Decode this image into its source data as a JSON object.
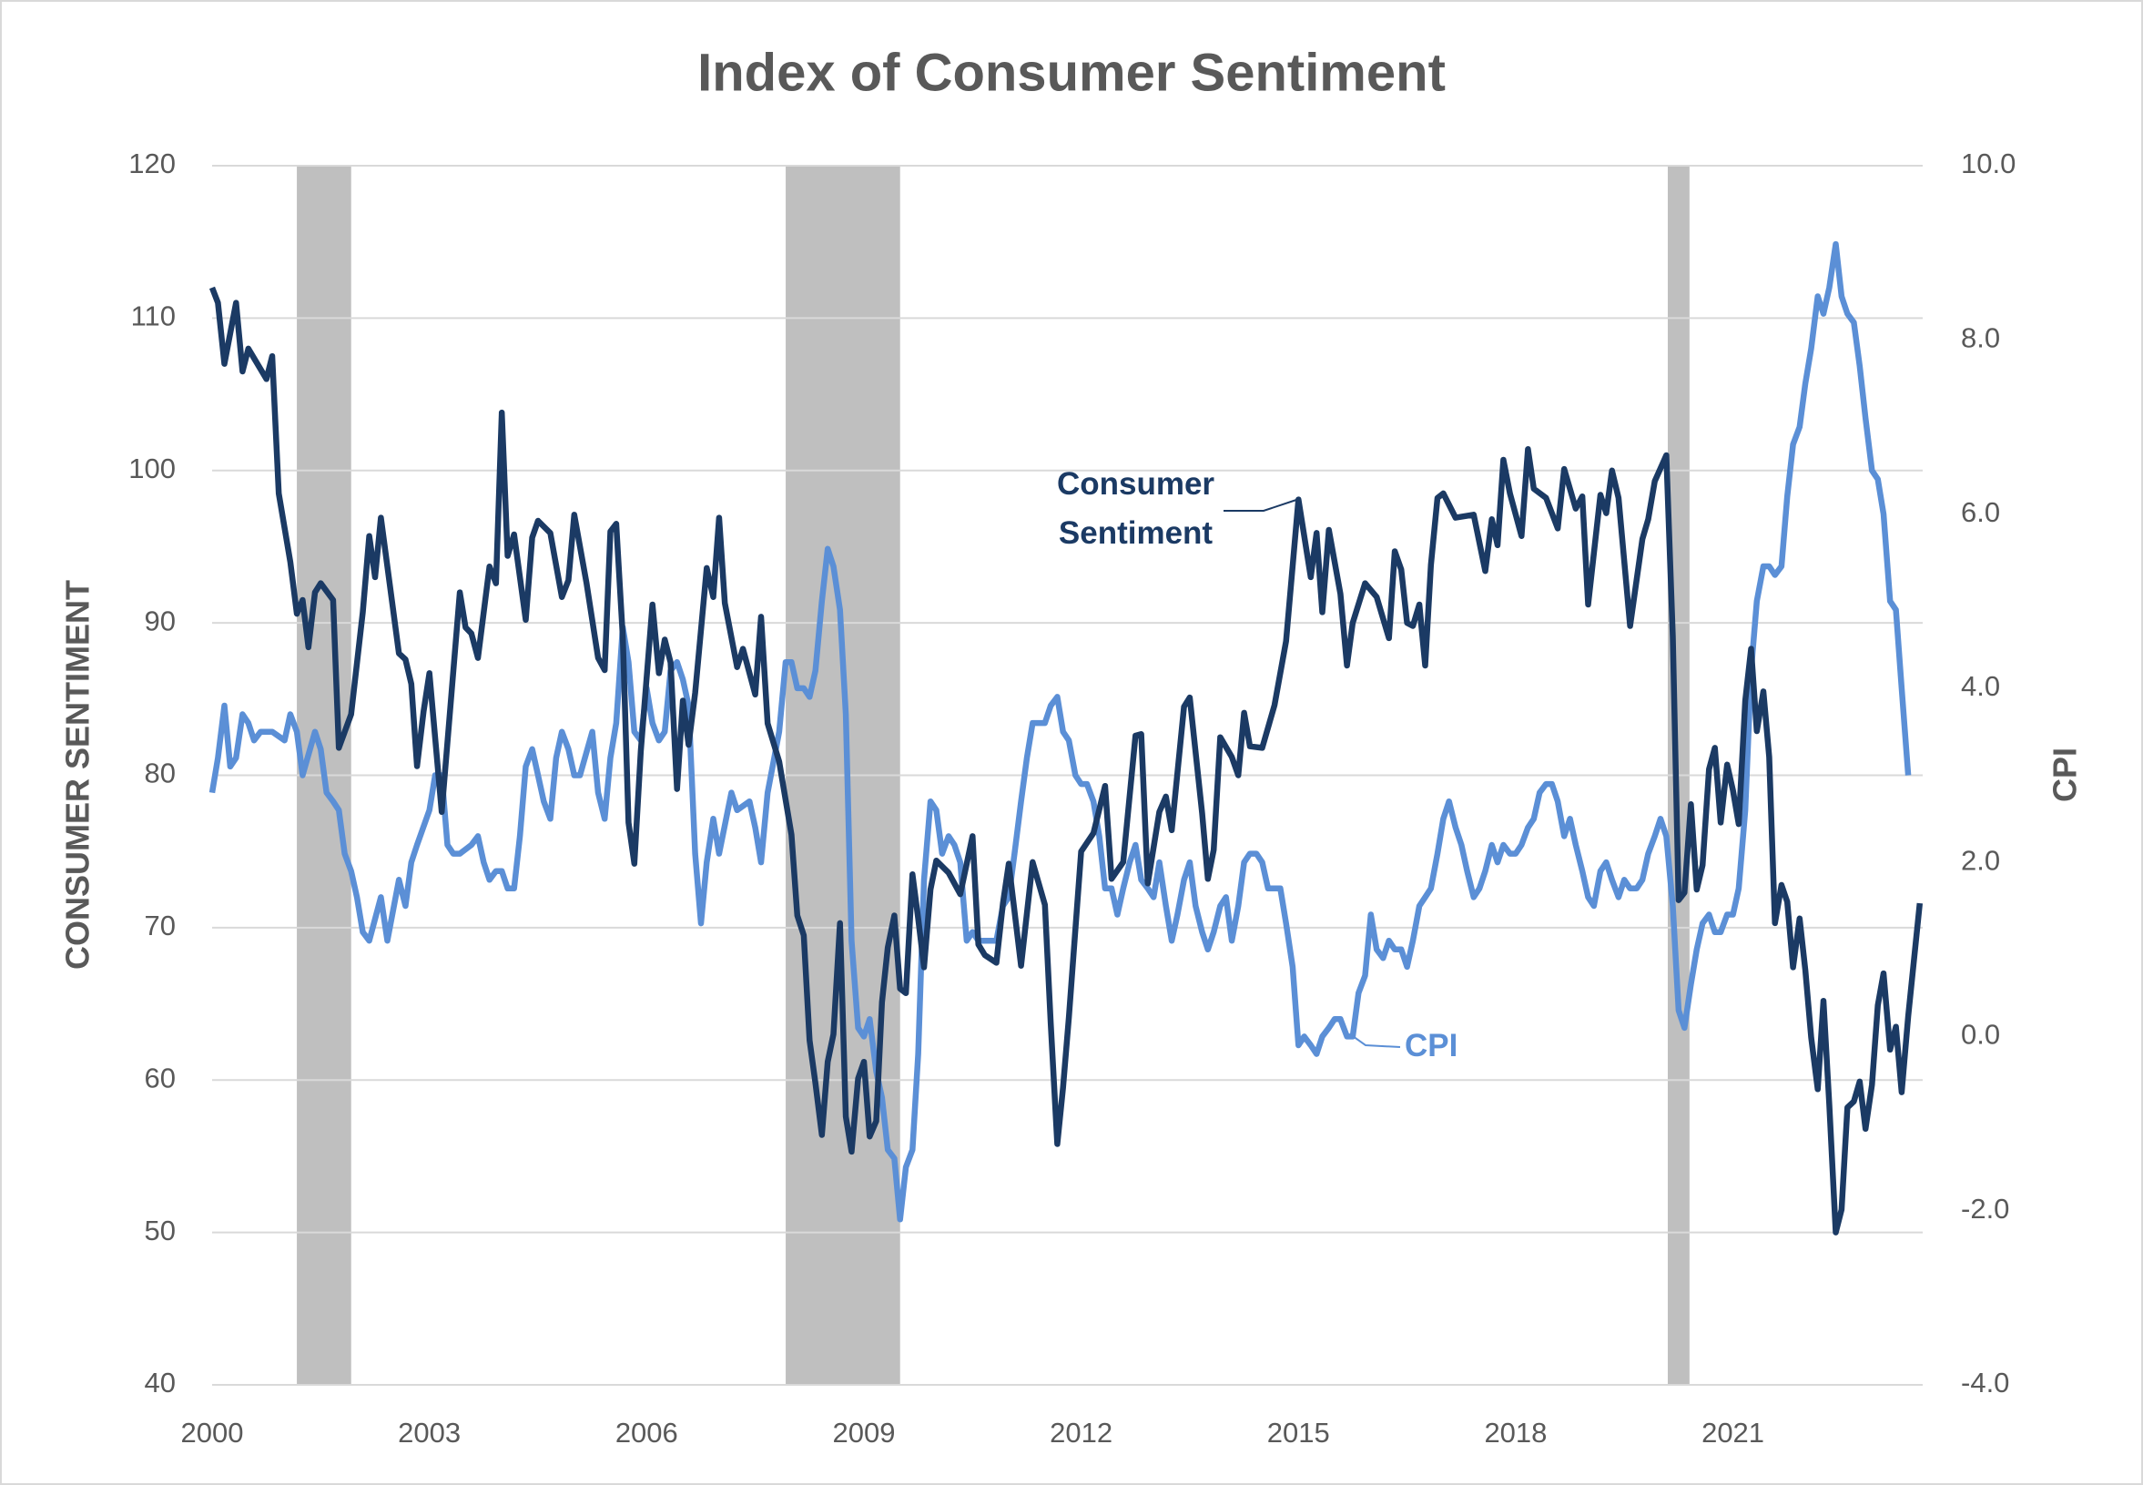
{
  "chart_data": {
    "type": "line",
    "title": "Index of Consumer Sentiment",
    "y_label": "CONSUMER SENTIMENT",
    "y2_label": "CPI",
    "xlim": [
      2000,
      2023.62
    ],
    "xticks": [
      2000,
      2003,
      2006,
      2009,
      2012,
      2015,
      2018,
      2021
    ],
    "ylim": [
      40,
      120
    ],
    "yticks": [
      40,
      50,
      60,
      70,
      80,
      90,
      100,
      110,
      120
    ],
    "y2lim": [
      -4,
      10
    ],
    "y2ticks": [
      {
        "value": -4,
        "label": "-4.0"
      },
      {
        "value": -2,
        "label": "-2.0"
      },
      {
        "value": 0,
        "label": "0.0"
      },
      {
        "value": 2,
        "label": "2.0"
      },
      {
        "value": 4,
        "label": "4.0"
      },
      {
        "value": 6,
        "label": "6.0"
      },
      {
        "value": 8,
        "label": "8.0"
      },
      {
        "value": 10,
        "label": "10.0"
      }
    ],
    "grid": true,
    "recession_color": "#bfbfbf",
    "recessions": [
      [
        2001.17,
        2001.92
      ],
      [
        2007.92,
        2009.5
      ],
      [
        2020.1,
        2020.4
      ]
    ],
    "series": [
      {
        "name": "Consumer Sentiment",
        "color": "#1b3a64",
        "x": [
          2000,
          2000.08,
          2000.17,
          2000.33,
          2000.42,
          2000.5,
          2000.75,
          2000.83,
          2000.92,
          2001.08,
          2001.17,
          2001.25,
          2001.33,
          2001.42,
          2001.5,
          2001.67,
          2001.75,
          2001.92,
          2002.08,
          2002.17,
          2002.25,
          2002.33,
          2002.58,
          2002.67,
          2002.75,
          2002.83,
          2002.92,
          2003,
          2003.17,
          2003.42,
          2003.5,
          2003.58,
          2003.67,
          2003.83,
          2003.92,
          2004,
          2004.08,
          2004.17,
          2004.33,
          2004.42,
          2004.5,
          2004.67,
          2004.83,
          2004.92,
          2005,
          2005.17,
          2005.33,
          2005.42,
          2005.5,
          2005.58,
          2005.67,
          2005.75,
          2005.83,
          2005.92,
          2006.08,
          2006.17,
          2006.25,
          2006.33,
          2006.42,
          2006.5,
          2006.58,
          2006.67,
          2006.83,
          2006.92,
          2007,
          2007.08,
          2007.25,
          2007.33,
          2007.5,
          2007.58,
          2007.67,
          2007.83,
          2008,
          2008.08,
          2008.17,
          2008.25,
          2008.33,
          2008.42,
          2008.5,
          2008.58,
          2008.67,
          2008.75,
          2008.83,
          2008.92,
          2009,
          2009.08,
          2009.17,
          2009.25,
          2009.33,
          2009.42,
          2009.5,
          2009.58,
          2009.67,
          2009.75,
          2009.83,
          2009.92,
          2010,
          2010.17,
          2010.33,
          2010.5,
          2010.58,
          2010.67,
          2010.83,
          2010.92,
          2011,
          2011.17,
          2011.33,
          2011.5,
          2011.58,
          2011.67,
          2011.75,
          2011.83,
          2012,
          2012.17,
          2012.33,
          2012.42,
          2012.58,
          2012.75,
          2012.83,
          2012.92,
          2013.08,
          2013.17,
          2013.25,
          2013.42,
          2013.5,
          2013.67,
          2013.75,
          2013.83,
          2013.92,
          2014.08,
          2014.17,
          2014.25,
          2014.33,
          2014.5,
          2014.67,
          2014.83,
          2015,
          2015.17,
          2015.25,
          2015.33,
          2015.42,
          2015.58,
          2015.67,
          2015.75,
          2015.92,
          2016.08,
          2016.25,
          2016.33,
          2016.42,
          2016.5,
          2016.58,
          2016.67,
          2016.75,
          2016.83,
          2016.92,
          2017,
          2017.17,
          2017.42,
          2017.58,
          2017.67,
          2017.75,
          2017.83,
          2017.92,
          2018.08,
          2018.17,
          2018.25,
          2018.42,
          2018.58,
          2018.67,
          2018.83,
          2018.92,
          2019,
          2019.17,
          2019.25,
          2019.33,
          2019.42,
          2019.58,
          2019.75,
          2019.83,
          2019.92,
          2020.08,
          2020.17,
          2020.25,
          2020.33,
          2020.42,
          2020.5,
          2020.58,
          2020.67,
          2020.75,
          2020.83,
          2020.92,
          2021,
          2021.08,
          2021.17,
          2021.25,
          2021.33,
          2021.42,
          2021.5,
          2021.58,
          2021.67,
          2021.75,
          2021.83,
          2021.92,
          2022,
          2022.08,
          2022.17,
          2022.25,
          2022.33,
          2022.42,
          2022.5,
          2022.58,
          2022.67,
          2022.75,
          2022.83,
          2022.92,
          2023,
          2023.08,
          2023.17,
          2023.25,
          2023.33,
          2023.42,
          2023.58
        ],
        "values": [
          112,
          111,
          107,
          111,
          106.5,
          108,
          106,
          107.5,
          98.5,
          94,
          90.6,
          91.5,
          88.4,
          92,
          92.6,
          91.5,
          81.8,
          84,
          90.7,
          95.7,
          93,
          96.9,
          88,
          87.6,
          86,
          80.6,
          84.2,
          86.7,
          77.6,
          92,
          89.7,
          89.3,
          87.7,
          93.7,
          92.6,
          103.8,
          94.4,
          95.8,
          90.2,
          95.6,
          96.7,
          95.9,
          91.7,
          92.8,
          97.1,
          92.6,
          87.7,
          86.9,
          96,
          96.5,
          89.1,
          76.9,
          74.2,
          81.6,
          91.2,
          86.7,
          88.9,
          87.4,
          79.1,
          84.9,
          82,
          85.4,
          93.6,
          91.7,
          96.9,
          91.3,
          87.1,
          88.3,
          85.3,
          90.4,
          83.4,
          80.9,
          76.1,
          70.8,
          69.5,
          62.6,
          59.8,
          56.4,
          61.2,
          63,
          70.3,
          57.6,
          55.3,
          60.1,
          61.2,
          56.3,
          57.3,
          65.1,
          68.7,
          70.8,
          66,
          65.7,
          73.5,
          70.6,
          67.4,
          72.5,
          74.4,
          73.6,
          72.2,
          76,
          68.9,
          68.2,
          67.7,
          71.6,
          74.2,
          67.5,
          74.3,
          71.5,
          63.7,
          55.8,
          59.5,
          64.1,
          75,
          76.2,
          79.3,
          73.2,
          74.3,
          82.6,
          82.7,
          72.9,
          77.6,
          78.6,
          76.4,
          84.5,
          85.1,
          77.5,
          73.2,
          75.1,
          82.5,
          81.2,
          80,
          84.1,
          81.9,
          81.8,
          84.6,
          88.8,
          98.1,
          93,
          95.9,
          90.7,
          96.1,
          91.9,
          87.2,
          90,
          92.6,
          91.7,
          89,
          94.7,
          93.5,
          90,
          89.8,
          91.2,
          87.2,
          93.8,
          98.2,
          98.5,
          96.9,
          97.1,
          93.4,
          96.8,
          95.1,
          100.7,
          98.5,
          95.7,
          101.4,
          98.8,
          98.2,
          96.2,
          100.1,
          97.5,
          98.3,
          91.2,
          98.4,
          97.2,
          100,
          98.2,
          89.8,
          95.5,
          96.8,
          99.3,
          101,
          89.1,
          71.8,
          72.3,
          78.1,
          72.5,
          74.1,
          80.4,
          81.8,
          76.9,
          80.7,
          79,
          76.8,
          84.9,
          88.3,
          82.9,
          85.5,
          81.2,
          70.3,
          72.8,
          71.7,
          67.4,
          70.6,
          67.2,
          62.8,
          59.4,
          65.2,
          58.4,
          50,
          51.5,
          58.2,
          58.6,
          59.9,
          56.8,
          59.7,
          64.9,
          67,
          62,
          63.5,
          59.2,
          64.2,
          71.6
        ]
      },
      {
        "name": "CPI",
        "color": "#5b8fd6",
        "axis": "y2",
        "x": [
          2000,
          2000.08,
          2000.17,
          2000.25,
          2000.33,
          2000.42,
          2000.5,
          2000.58,
          2000.67,
          2000.83,
          2001,
          2001.08,
          2001.17,
          2001.25,
          2001.42,
          2001.5,
          2001.58,
          2001.67,
          2001.75,
          2001.83,
          2001.92,
          2002,
          2002.08,
          2002.17,
          2002.33,
          2002.42,
          2002.58,
          2002.67,
          2002.75,
          2002.83,
          2003,
          2003.08,
          2003.17,
          2003.25,
          2003.33,
          2003.42,
          2003.58,
          2003.67,
          2003.75,
          2003.83,
          2003.92,
          2004,
          2004.08,
          2004.17,
          2004.25,
          2004.33,
          2004.42,
          2004.5,
          2004.58,
          2004.67,
          2004.75,
          2004.83,
          2004.92,
          2005,
          2005.08,
          2005.25,
          2005.33,
          2005.42,
          2005.5,
          2005.58,
          2005.67,
          2005.75,
          2005.83,
          2005.92,
          2006,
          2006.08,
          2006.17,
          2006.25,
          2006.33,
          2006.42,
          2006.5,
          2006.58,
          2006.67,
          2006.75,
          2006.83,
          2006.92,
          2007,
          2007.17,
          2007.25,
          2007.42,
          2007.5,
          2007.58,
          2007.67,
          2007.83,
          2007.92,
          2008,
          2008.08,
          2008.17,
          2008.25,
          2008.33,
          2008.42,
          2008.5,
          2008.58,
          2008.67,
          2008.75,
          2008.83,
          2008.92,
          2009,
          2009.08,
          2009.17,
          2009.25,
          2009.33,
          2009.42,
          2009.5,
          2009.58,
          2009.67,
          2009.75,
          2009.83,
          2009.92,
          2010,
          2010.08,
          2010.17,
          2010.25,
          2010.33,
          2010.42,
          2010.5,
          2010.58,
          2010.67,
          2010.83,
          2010.92,
          2011,
          2011.08,
          2011.17,
          2011.25,
          2011.33,
          2011.42,
          2011.5,
          2011.58,
          2011.67,
          2011.75,
          2011.83,
          2011.92,
          2012,
          2012.08,
          2012.17,
          2012.25,
          2012.33,
          2012.42,
          2012.5,
          2012.58,
          2012.67,
          2012.75,
          2012.83,
          2012.92,
          2013,
          2013.08,
          2013.17,
          2013.25,
          2013.33,
          2013.42,
          2013.5,
          2013.58,
          2013.67,
          2013.75,
          2013.83,
          2013.92,
          2014,
          2014.08,
          2014.17,
          2014.25,
          2014.33,
          2014.42,
          2014.5,
          2014.58,
          2014.67,
          2014.75,
          2014.83,
          2014.92,
          2015,
          2015.08,
          2015.17,
          2015.25,
          2015.33,
          2015.42,
          2015.5,
          2015.58,
          2015.67,
          2015.75,
          2015.83,
          2015.92,
          2016,
          2016.08,
          2016.17,
          2016.25,
          2016.33,
          2016.42,
          2016.5,
          2016.58,
          2016.67,
          2016.75,
          2016.83,
          2016.92,
          2017,
          2017.08,
          2017.17,
          2017.25,
          2017.33,
          2017.42,
          2017.5,
          2017.58,
          2017.67,
          2017.75,
          2017.83,
          2017.92,
          2018,
          2018.08,
          2018.17,
          2018.25,
          2018.33,
          2018.42,
          2018.5,
          2018.58,
          2018.67,
          2018.75,
          2018.83,
          2018.92,
          2019,
          2019.08,
          2019.17,
          2019.25,
          2019.33,
          2019.42,
          2019.5,
          2019.58,
          2019.67,
          2019.75,
          2019.83,
          2019.92,
          2020,
          2020.08,
          2020.17,
          2020.25,
          2020.33,
          2020.42,
          2020.5,
          2020.58,
          2020.67,
          2020.75,
          2020.83,
          2020.92,
          2021,
          2021.08,
          2021.17,
          2021.25,
          2021.33,
          2021.42,
          2021.5,
          2021.58,
          2021.67,
          2021.75,
          2021.83,
          2021.92,
          2022,
          2022.08,
          2022.17,
          2022.25,
          2022.33,
          2022.42,
          2022.5,
          2022.58,
          2022.67,
          2022.75,
          2022.83,
          2022.92,
          2023,
          2023.08,
          2023.17,
          2023.25,
          2023.33,
          2023.42
        ],
        "values": [
          2.8,
          3.2,
          3.8,
          3.1,
          3.2,
          3.7,
          3.6,
          3.4,
          3.5,
          3.5,
          3.4,
          3.7,
          3.5,
          3.0,
          3.5,
          3.3,
          2.8,
          2.7,
          2.6,
          2.1,
          1.9,
          1.6,
          1.2,
          1.1,
          1.6,
          1.1,
          1.8,
          1.5,
          2.0,
          2.2,
          2.6,
          3.0,
          3.0,
          2.2,
          2.1,
          2.1,
          2.2,
          2.3,
          2.0,
          1.8,
          1.9,
          1.9,
          1.7,
          1.7,
          2.3,
          3.1,
          3.3,
          3.0,
          2.7,
          2.5,
          3.2,
          3.5,
          3.3,
          3.0,
          3.0,
          3.5,
          2.8,
          2.5,
          3.2,
          3.6,
          4.7,
          4.3,
          3.5,
          3.4,
          4.0,
          3.6,
          3.4,
          3.5,
          4.2,
          4.3,
          4.1,
          3.8,
          2.1,
          1.3,
          2.0,
          2.5,
          2.1,
          2.8,
          2.6,
          2.7,
          2.4,
          2.0,
          2.8,
          3.5,
          4.3,
          4.3,
          4.0,
          4.0,
          3.9,
          4.2,
          5.0,
          5.6,
          5.4,
          4.9,
          3.7,
          1.1,
          0.1,
          0.0,
          0.2,
          -0.4,
          -0.7,
          -1.3,
          -1.4,
          -2.1,
          -1.5,
          -1.3,
          -0.2,
          1.8,
          2.7,
          2.6,
          2.1,
          2.3,
          2.2,
          2.0,
          1.1,
          1.2,
          1.1,
          1.1,
          1.1,
          1.5,
          1.6,
          2.1,
          2.7,
          3.2,
          3.6,
          3.6,
          3.6,
          3.8,
          3.9,
          3.5,
          3.4,
          3.0,
          2.9,
          2.9,
          2.7,
          2.3,
          1.7,
          1.7,
          1.4,
          1.7,
          2.0,
          2.2,
          1.8,
          1.7,
          1.6,
          2.0,
          1.5,
          1.1,
          1.4,
          1.8,
          2.0,
          1.5,
          1.2,
          1.0,
          1.2,
          1.5,
          1.6,
          1.1,
          1.5,
          2.0,
          2.1,
          2.1,
          2.0,
          1.7,
          1.7,
          1.7,
          1.3,
          0.8,
          -0.1,
          0.0,
          -0.1,
          -0.2,
          0.0,
          0.1,
          0.2,
          0.2,
          0.0,
          0.0,
          0.5,
          0.7,
          1.4,
          1.0,
          0.9,
          1.1,
          1.0,
          1.0,
          0.8,
          1.1,
          1.5,
          1.6,
          1.7,
          2.1,
          2.5,
          2.7,
          2.4,
          2.2,
          1.9,
          1.6,
          1.7,
          1.9,
          2.2,
          2.0,
          2.2,
          2.1,
          2.1,
          2.2,
          2.4,
          2.5,
          2.8,
          2.9,
          2.9,
          2.7,
          2.3,
          2.5,
          2.2,
          1.9,
          1.6,
          1.5,
          1.9,
          2.0,
          1.8,
          1.6,
          1.8,
          1.7,
          1.7,
          1.8,
          2.1,
          2.3,
          2.5,
          2.3,
          1.5,
          0.3,
          0.1,
          0.6,
          1.0,
          1.3,
          1.4,
          1.2,
          1.2,
          1.4,
          1.4,
          1.7,
          2.6,
          4.2,
          5.0,
          5.4,
          5.4,
          5.3,
          5.4,
          6.2,
          6.8,
          7.0,
          7.5,
          7.9,
          8.5,
          8.3,
          8.6,
          9.1,
          8.5,
          8.3,
          8.2,
          7.7,
          7.1,
          6.5,
          6.4,
          6.0,
          5.0,
          4.9,
          4.0,
          3.0
        ]
      }
    ]
  }
}
